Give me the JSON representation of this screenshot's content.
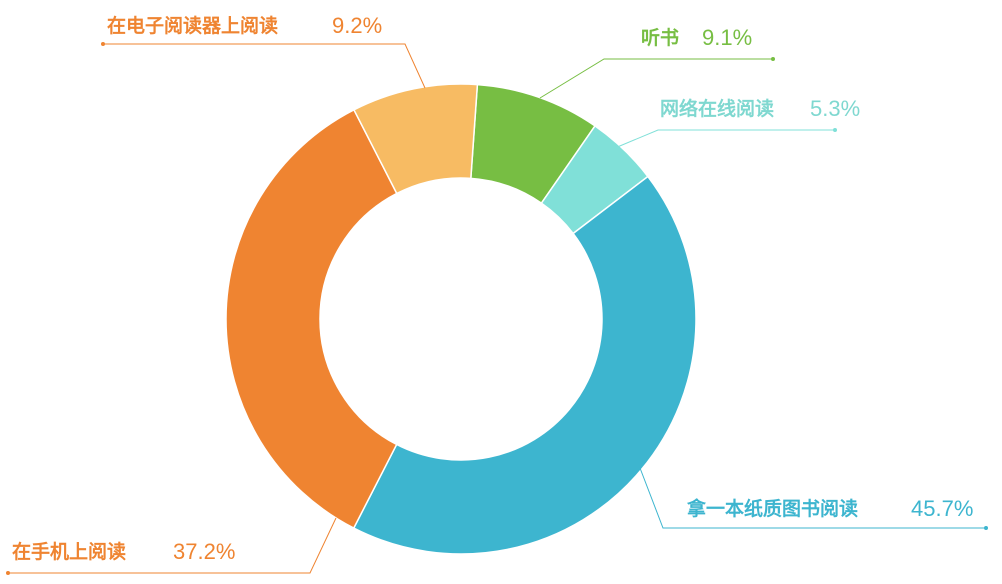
{
  "chart_data": {
    "type": "pie",
    "style": "donut",
    "slices": [
      {
        "label": "拿一本纸质图书阅读",
        "value_text": "45.7%",
        "value": 45.7,
        "color": "#3db5cf"
      },
      {
        "label": "在手机上阅读",
        "value_text": "37.2%",
        "value": 37.2,
        "color": "#ef8431"
      },
      {
        "label": "在电子阅读器上阅读",
        "value_text": "9.2%",
        "value": 9.2,
        "color": "#f7bb63"
      },
      {
        "label": "听书",
        "value_text": "9.1%",
        "value": 9.1,
        "color": "#77be43"
      },
      {
        "label": "网络在线阅读",
        "value_text": "5.3%",
        "value": 5.3,
        "color": "#80e0d8"
      }
    ]
  }
}
